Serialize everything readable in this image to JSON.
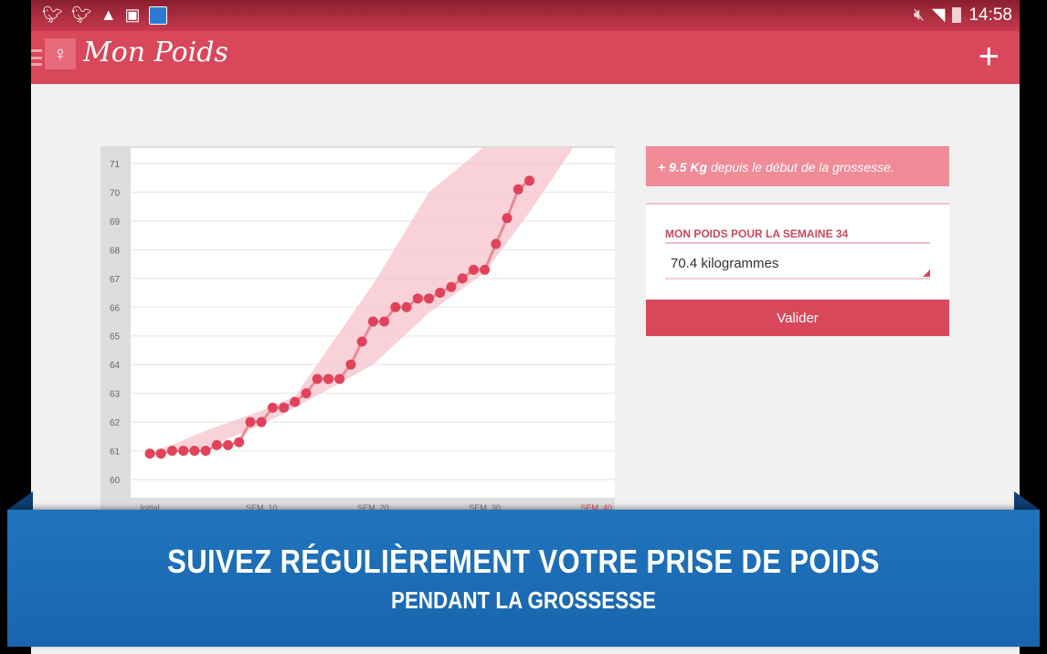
{
  "status_bar": {
    "time": "14:58",
    "left_icons": [
      "twitter-icon",
      "twitter-icon",
      "warning-icon",
      "image-icon",
      "app-notification-icon"
    ],
    "right_icons": [
      "mute-icon",
      "wifi-icon",
      "battery-icon"
    ]
  },
  "app_bar": {
    "title": "Mon Poids",
    "add_label": "+"
  },
  "summary": {
    "gain": "+ 9.5 Kg",
    "text": " depuis le début de la grossesse."
  },
  "form": {
    "label": "MON POIDS POUR LA SEMAINE 34",
    "value": "70.4 kilogrammes",
    "submit": "Valider"
  },
  "banner": {
    "line1": "SUIVEZ RÉGULIÈREMENT VOTRE PRISE DE POIDS",
    "line2": "PENDANT LA GROSSESSE"
  },
  "colors": {
    "accent": "#d9475b",
    "point": "#e0435a",
    "band": "#f5c3cb",
    "banner": "#1f74bd"
  },
  "chart_data": {
    "type": "line",
    "y_ticks": [
      "60",
      "61",
      "62",
      "63",
      "64",
      "65",
      "66",
      "67",
      "68",
      "69",
      "70",
      "71"
    ],
    "ylim": [
      59.5,
      71.6
    ],
    "xlim": [
      0,
      40
    ],
    "x_ticks": [
      {
        "week": 0,
        "label": "Initial"
      },
      {
        "week": 10,
        "label": "SEM. 10"
      },
      {
        "week": 20,
        "label": "SEM. 20"
      },
      {
        "week": 30,
        "label": "SEM. 30"
      },
      {
        "week": 40,
        "label": "SEM. 40",
        "highlight": true
      }
    ],
    "grid": true,
    "weeks": [
      0,
      1,
      2,
      3,
      4,
      5,
      6,
      7,
      8,
      9,
      10,
      11,
      12,
      13,
      14,
      15,
      16,
      17,
      18,
      19,
      20,
      21,
      22,
      23,
      24,
      25,
      26,
      27,
      28,
      29,
      30,
      31,
      32,
      33,
      34
    ],
    "values": [
      60.9,
      60.9,
      61.0,
      61.0,
      61.0,
      61.0,
      61.2,
      61.2,
      61.3,
      62.0,
      62.0,
      62.5,
      62.5,
      62.7,
      63.0,
      63.5,
      63.5,
      63.5,
      64.0,
      64.8,
      65.5,
      65.5,
      66.0,
      66.0,
      66.3,
      66.3,
      66.5,
      66.7,
      67.0,
      67.3,
      67.3,
      68.2,
      69.1,
      70.1,
      70.4
    ],
    "band": {
      "weeks": [
        0,
        2,
        5,
        10,
        13,
        20,
        25,
        30,
        34,
        38
      ],
      "upper": [
        60.95,
        61.2,
        61.7,
        62.4,
        62.9,
        66.8,
        70.0,
        71.6,
        71.6,
        71.6
      ],
      "lower": [
        60.9,
        60.95,
        61.1,
        61.9,
        62.5,
        64.0,
        65.8,
        67.2,
        69.3,
        71.6
      ]
    }
  }
}
